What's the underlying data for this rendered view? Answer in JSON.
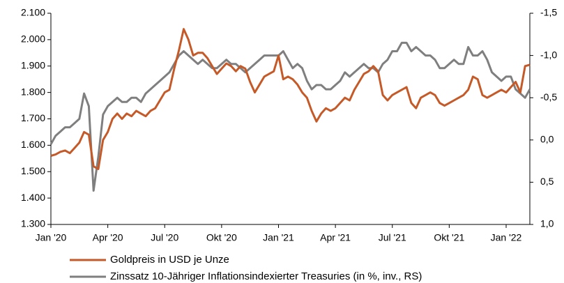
{
  "chart_data": {
    "type": "line",
    "categories": [
      "Jan '20",
      null,
      null,
      null,
      null,
      null,
      null,
      null,
      null,
      null,
      null,
      null,
      "Apr '20",
      null,
      null,
      null,
      null,
      null,
      null,
      null,
      null,
      null,
      null,
      null,
      "Jul '20",
      null,
      null,
      null,
      null,
      null,
      null,
      null,
      null,
      null,
      null,
      null,
      "Okt '20",
      null,
      null,
      null,
      null,
      null,
      null,
      null,
      null,
      null,
      null,
      null,
      "Jan '21",
      null,
      null,
      null,
      null,
      null,
      null,
      null,
      null,
      null,
      null,
      null,
      "Apr '21",
      null,
      null,
      null,
      null,
      null,
      null,
      null,
      null,
      null,
      null,
      null,
      "Jul '21",
      null,
      null,
      null,
      null,
      null,
      null,
      null,
      null,
      null,
      null,
      null,
      "Okt '21",
      null,
      null,
      null,
      null,
      null,
      null,
      null,
      null,
      null,
      null,
      null,
      "Jan '22",
      null,
      null,
      null,
      null,
      null
    ],
    "series": [
      {
        "name": "Goldpreis in USD je Unze",
        "color": "#c55a28",
        "values": [
          1560,
          1565,
          1575,
          1580,
          1570,
          1590,
          1610,
          1650,
          1640,
          1520,
          1510,
          1620,
          1650,
          1700,
          1720,
          1700,
          1720,
          1710,
          1730,
          1720,
          1710,
          1730,
          1740,
          1770,
          1800,
          1810,
          1890,
          1960,
          2040,
          2000,
          1940,
          1950,
          1950,
          1930,
          1900,
          1870,
          1890,
          1910,
          1900,
          1880,
          1900,
          1890,
          1840,
          1800,
          1830,
          1860,
          1870,
          1880,
          1940,
          1850,
          1860,
          1850,
          1830,
          1800,
          1780,
          1730,
          1690,
          1720,
          1740,
          1730,
          1740,
          1760,
          1780,
          1770,
          1810,
          1840,
          1870,
          1880,
          1900,
          1880,
          1790,
          1770,
          1790,
          1800,
          1810,
          1820,
          1760,
          1740,
          1780,
          1790,
          1800,
          1790,
          1760,
          1750,
          1760,
          1770,
          1780,
          1790,
          1810,
          1860,
          1850,
          1790,
          1780,
          1790,
          1800,
          1810,
          1800,
          1820,
          1840,
          1800,
          1900,
          1905
        ]
      },
      {
        "name": "Zinssatz 10-Jähriger Inflationsindexierter Treasuries (in %, inv., RS)",
        "color": "#7f7f7f",
        "axis": "y2",
        "values": [
          0.05,
          -0.05,
          -0.1,
          -0.15,
          -0.15,
          -0.2,
          -0.25,
          -0.55,
          -0.4,
          0.6,
          0.2,
          -0.3,
          -0.4,
          -0.45,
          -0.5,
          -0.45,
          -0.45,
          -0.5,
          -0.5,
          -0.45,
          -0.55,
          -0.6,
          -0.65,
          -0.7,
          -0.75,
          -0.8,
          -0.9,
          -1.0,
          -1.05,
          -1.0,
          -0.95,
          -0.9,
          -0.95,
          -0.9,
          -0.85,
          -0.85,
          -0.9,
          -0.95,
          -0.9,
          -0.9,
          -0.85,
          -0.8,
          -0.85,
          -0.9,
          -0.95,
          -1.0,
          -1.0,
          -1.0,
          -1.0,
          -1.05,
          -0.95,
          -0.85,
          -0.9,
          -0.85,
          -0.7,
          -0.6,
          -0.65,
          -0.65,
          -0.6,
          -0.6,
          -0.65,
          -0.7,
          -0.8,
          -0.75,
          -0.8,
          -0.85,
          -0.9,
          -0.85,
          -0.85,
          -0.8,
          -0.9,
          -0.95,
          -1.05,
          -1.05,
          -1.15,
          -1.15,
          -1.05,
          -1.1,
          -1.05,
          -1.0,
          -1.0,
          -0.95,
          -0.85,
          -0.85,
          -0.9,
          -0.95,
          -0.9,
          -0.9,
          -1.1,
          -1.0,
          -1.0,
          -1.05,
          -0.95,
          -0.8,
          -0.75,
          -0.7,
          -0.75,
          -0.75,
          -0.6,
          -0.55,
          -0.5,
          -0.6
        ]
      }
    ],
    "ylim": [
      1300,
      2100
    ],
    "yticks": [
      {
        "value": 1300,
        "label": "1.300"
      },
      {
        "value": 1400,
        "label": "1.400"
      },
      {
        "value": 1500,
        "label": "1.500"
      },
      {
        "value": 1600,
        "label": "1.600"
      },
      {
        "value": 1700,
        "label": "1.700"
      },
      {
        "value": 1800,
        "label": "1.800"
      },
      {
        "value": 1900,
        "label": "1.900"
      },
      {
        "value": 2000,
        "label": "2.000"
      },
      {
        "value": 2100,
        "label": "2.100"
      }
    ],
    "y2lim": [
      1.0,
      -1.5
    ],
    "y2ticks": [
      {
        "value": 1.0,
        "label": "1,0"
      },
      {
        "value": 0.5,
        "label": "0,5"
      },
      {
        "value": 0,
        "label": "0,0"
      },
      {
        "value": -0.5,
        "label": "-0,5"
      },
      {
        "value": -1.0,
        "label": "-1,0"
      },
      {
        "value": -1.5,
        "label": "-1,5"
      }
    ],
    "legend": "bottom"
  }
}
